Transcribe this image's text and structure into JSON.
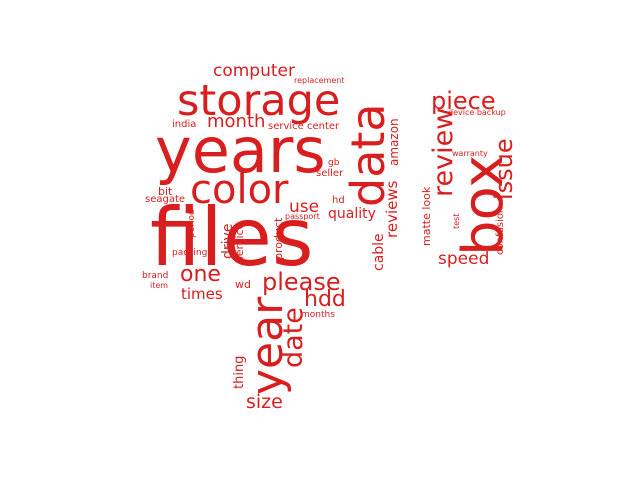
{
  "colors": {
    "word": "#d81e1e",
    "background": "#ffffff"
  },
  "words": {
    "files": "files",
    "years": "years",
    "storage": "storage",
    "data": "data",
    "color": "color",
    "box": "box",
    "year": "year",
    "review": "review",
    "please": "please",
    "date": "date",
    "piece": "piece",
    "issue": "issue",
    "computer": "computer",
    "month": "month",
    "one": "one",
    "hdd": "hdd",
    "size": "size",
    "speed": "speed",
    "reviews": "reviews",
    "amazon": "amazon",
    "times": "times",
    "use": "use",
    "quality": "quality",
    "cable": "cable",
    "drive": "drive",
    "thing": "thing",
    "service": "service",
    "product": "product",
    "matte_look": "matte look",
    "confusion": "confusion",
    "service_center": "service center",
    "india": "india",
    "bit": "bit",
    "seagate": "seagate",
    "period": "period",
    "packing": "packing",
    "brand": "brand",
    "item": "item",
    "wd": "wd",
    "hd": "hd",
    "gb": "gb",
    "seller": "seller",
    "passport": "passport",
    "months": "months",
    "replacement": "replacement",
    "device_backup": "device backup",
    "warranty": "warranty",
    "test": "test"
  }
}
